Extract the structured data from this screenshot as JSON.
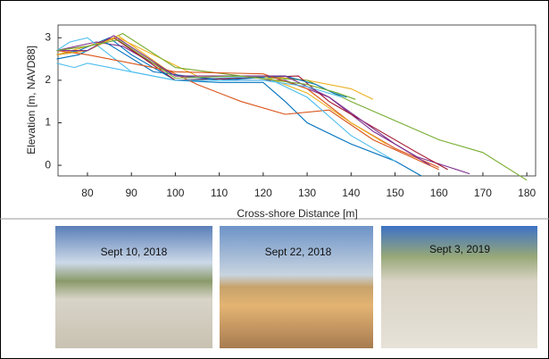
{
  "chart_data": {
    "type": "line",
    "xlabel": "Cross-shore Distance [m]",
    "ylabel": "Elevation [m, NAVD88]",
    "xlim": [
      73.3,
      182
    ],
    "ylim": [
      -0.25,
      3.3
    ],
    "xticks": [
      80,
      90,
      100,
      110,
      120,
      130,
      140,
      150,
      160,
      170,
      180
    ],
    "yticks": [
      0,
      1,
      2,
      3
    ],
    "series": [
      {
        "color": "#0072bd",
        "x": [
          73,
          78,
          85,
          90,
          100,
          110,
          120,
          125,
          130,
          140,
          150,
          156
        ],
        "values": [
          2.6,
          2.7,
          3.0,
          2.6,
          2.0,
          1.95,
          1.95,
          1.5,
          1.0,
          0.5,
          0.1,
          -0.25
        ]
      },
      {
        "color": "#d95319",
        "x": [
          73,
          80,
          86,
          95,
          105,
          115,
          125,
          135,
          145,
          160
        ],
        "values": [
          2.7,
          2.8,
          3.0,
          2.4,
          1.9,
          1.5,
          1.2,
          1.3,
          0.6,
          -0.1
        ]
      },
      {
        "color": "#edb120",
        "x": [
          73,
          80,
          87,
          95,
          105,
          120,
          130,
          140,
          145
        ],
        "values": [
          2.6,
          2.8,
          3.0,
          2.6,
          2.1,
          2.1,
          2.0,
          1.8,
          1.55
        ]
      },
      {
        "color": "#7e2f8e",
        "x": [
          73,
          82,
          88,
          100,
          115,
          125,
          135,
          145,
          155,
          167
        ],
        "values": [
          2.7,
          2.9,
          2.8,
          2.1,
          2.0,
          2.0,
          1.6,
          0.8,
          0.2,
          -0.2
        ]
      },
      {
        "color": "#77ac30",
        "x": [
          73,
          80,
          88,
          100,
          115,
          130,
          140,
          160,
          170,
          180
        ],
        "values": [
          2.6,
          2.7,
          3.1,
          2.3,
          2.1,
          2.0,
          1.5,
          0.6,
          0.3,
          -0.35
        ]
      },
      {
        "color": "#4dbeee",
        "x": [
          73,
          76,
          80,
          90,
          100,
          120,
          130,
          140,
          150
        ],
        "values": [
          2.7,
          2.9,
          3.0,
          2.2,
          2.0,
          2.1,
          1.6,
          0.7,
          0.1
        ]
      },
      {
        "color": "#a2142f",
        "x": [
          73,
          80,
          86,
          100,
          115,
          128,
          135,
          145,
          155,
          162
        ],
        "values": [
          2.6,
          2.7,
          3.0,
          2.0,
          2.05,
          2.1,
          1.5,
          0.9,
          0.3,
          -0.1
        ]
      },
      {
        "color": "#0072bd",
        "x": [
          73,
          78,
          84,
          95,
          110,
          125,
          132,
          136,
          139
        ],
        "values": [
          2.5,
          2.6,
          2.9,
          2.2,
          2.0,
          2.1,
          1.9,
          1.7,
          1.6
        ]
      },
      {
        "color": "#d95319",
        "x": [
          73,
          80,
          85,
          100,
          120,
          130,
          140,
          150,
          160
        ],
        "values": [
          2.7,
          2.6,
          2.5,
          2.2,
          2.15,
          1.8,
          1.0,
          0.4,
          -0.05
        ]
      },
      {
        "color": "#edb120",
        "x": [
          73,
          80,
          87,
          100,
          120,
          130,
          140,
          148
        ],
        "values": [
          2.6,
          2.7,
          3.05,
          2.1,
          2.1,
          1.7,
          1.0,
          0.5
        ]
      },
      {
        "color": "#7e2f8e",
        "x": [
          73,
          80,
          86,
          100,
          110,
          125,
          135,
          150,
          158
        ],
        "values": [
          2.7,
          2.7,
          3.05,
          2.1,
          2.1,
          2.1,
          1.6,
          0.5,
          0.0
        ]
      },
      {
        "color": "#77ac30",
        "x": [
          73,
          80,
          87,
          100,
          115,
          130,
          137,
          141
        ],
        "values": [
          2.7,
          2.8,
          2.95,
          2.05,
          2.1,
          1.9,
          1.7,
          1.55
        ]
      },
      {
        "color": "#4dbeee",
        "x": [
          73,
          77,
          80,
          85,
          90,
          100,
          110,
          120,
          130,
          138
        ],
        "values": [
          2.4,
          2.3,
          2.4,
          2.3,
          2.2,
          2.0,
          2.0,
          2.0,
          1.85,
          1.6
        ]
      }
    ]
  },
  "photos": [
    {
      "caption": "Sept 10, 2018"
    },
    {
      "caption": "Sept 22, 2018"
    },
    {
      "caption": "Sept 3, 2019"
    }
  ]
}
